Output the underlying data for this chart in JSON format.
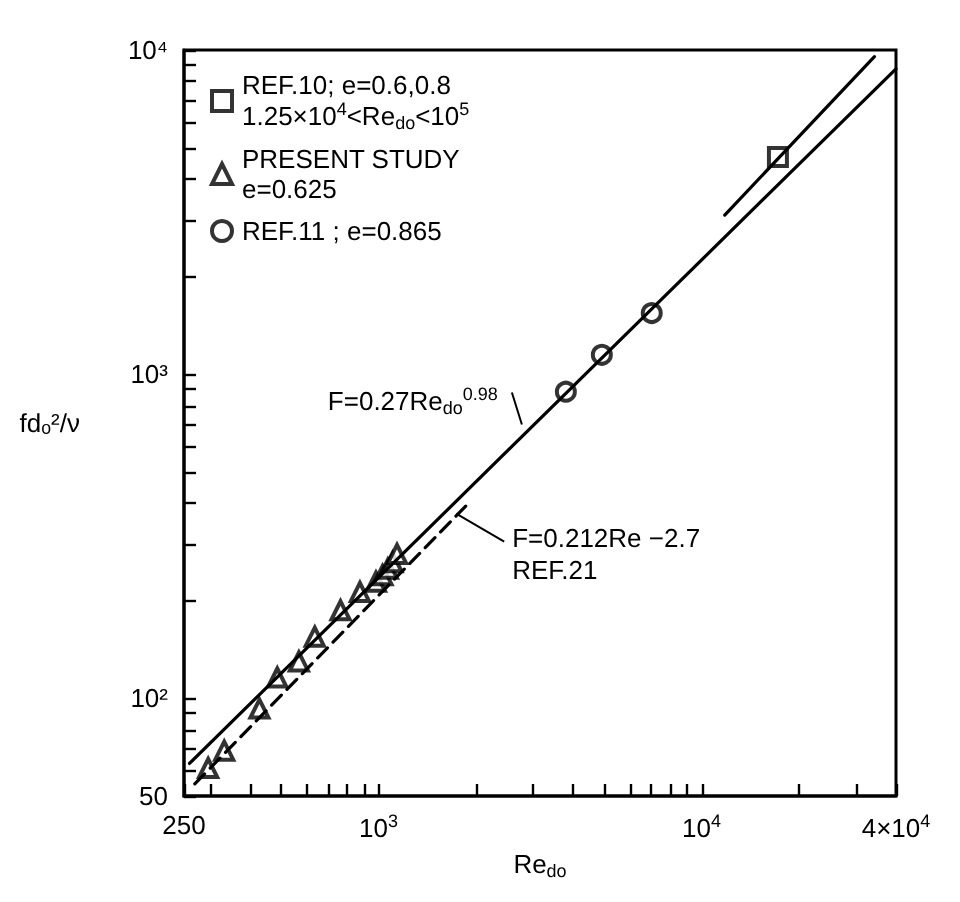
{
  "chart_data": {
    "type": "scatter",
    "xlabel": "Re$_{do}$",
    "ylabel": "fdₒ²/ν",
    "log": "xy",
    "legend": "top left",
    "xlim": [
      250,
      40000
    ],
    "ylim": [
      50,
      10000
    ],
    "xticks": [
      {
        "value": 250,
        "label": "250"
      },
      {
        "value": 300,
        "label": null
      },
      {
        "value": 400,
        "label": null
      },
      {
        "value": 500,
        "label": null
      },
      {
        "value": 600,
        "label": null
      },
      {
        "value": 700,
        "label": null
      },
      {
        "value": 800,
        "label": null
      },
      {
        "value": 900,
        "label": null
      },
      {
        "value": 1000,
        "label": "10$^{3}$"
      },
      {
        "value": 2000,
        "label": null
      },
      {
        "value": 3000,
        "label": null
      },
      {
        "value": 4000,
        "label": null
      },
      {
        "value": 5000,
        "label": null
      },
      {
        "value": 6000,
        "label": null
      },
      {
        "value": 7000,
        "label": null
      },
      {
        "value": 8000,
        "label": null
      },
      {
        "value": 9000,
        "label": null
      },
      {
        "value": 10000,
        "label": "10$^{4}$"
      },
      {
        "value": 20000,
        "label": null
      },
      {
        "value": 30000,
        "label": null
      },
      {
        "value": 40000,
        "label": "4×10$^{4}$"
      }
    ],
    "yticks": [
      {
        "value": 50,
        "label": "50"
      },
      {
        "value": 60,
        "label": null
      },
      {
        "value": 70,
        "label": null
      },
      {
        "value": 80,
        "label": null
      },
      {
        "value": 90,
        "label": null
      },
      {
        "value": 100,
        "label": "10²"
      },
      {
        "value": 200,
        "label": null
      },
      {
        "value": 300,
        "label": null
      },
      {
        "value": 400,
        "label": null
      },
      {
        "value": 500,
        "label": null
      },
      {
        "value": 600,
        "label": null
      },
      {
        "value": 700,
        "label": null
      },
      {
        "value": 800,
        "label": null
      },
      {
        "value": 900,
        "label": null
      },
      {
        "value": 1000,
        "label": "10³"
      },
      {
        "value": 2000,
        "label": null
      },
      {
        "value": 3000,
        "label": null
      },
      {
        "value": 4000,
        "label": null
      },
      {
        "value": 5000,
        "label": null
      },
      {
        "value": 6000,
        "label": null
      },
      {
        "value": 7000,
        "label": null
      },
      {
        "value": 8000,
        "label": null
      },
      {
        "value": 9000,
        "label": null
      },
      {
        "value": 10000,
        "label": "10⁴"
      }
    ],
    "series": [
      {
        "name": "REF.10; e=0.6,0.8\n1.25×10$^{4}$<Re$_{do}$<10$^{5}$",
        "type": "scatter",
        "marker": "square",
        "color": "#000000",
        "x": [
          17240
        ],
        "values": [
          4677
        ]
      },
      {
        "name": "PRESENT STUDY\ne=0.625",
        "type": "scatter",
        "marker": "triangle",
        "color": "#000000",
        "x": [
          297,
          333,
          428,
          486,
          567,
          635,
          763,
          876,
          982,
          1029,
          1069,
          1105,
          1141
        ],
        "values": [
          61,
          69,
          93,
          116,
          130,
          155,
          187,
          213,
          229,
          240,
          251,
          263,
          279
        ]
      },
      {
        "name": "REF.11 ; e=0.865",
        "type": "scatter",
        "marker": "circle",
        "color": "#000000",
        "x": [
          3802,
          4914,
          7013
        ],
        "values": [
          883,
          1148,
          1544
        ]
      },
      {
        "type": "line",
        "marker": "none",
        "line_style": "solid",
        "color": "#000000",
        "x": [
          11800,
          34300
        ],
        "values": [
          3097,
          9540
        ]
      },
      {
        "type": "line",
        "marker": "none",
        "line_style": "solid",
        "color": "#000000",
        "x": [
          260,
          40000
        ],
        "values": [
          63,
          8750
        ]
      },
      {
        "type": "line",
        "marker": "none",
        "line_style": "dashed",
        "color": "#000000",
        "x": [
          270,
          1900
        ],
        "values": [
          54.5,
          400
        ]
      }
    ],
    "annotations": [
      {
        "text": "F=0.27Re$_{do}$$^{0.98}$",
        "x": 2900,
        "y": 680
      },
      {
        "text": "F=0.212Re −2.7\nREF.21",
        "x": 1816,
        "y": 382
      }
    ]
  }
}
